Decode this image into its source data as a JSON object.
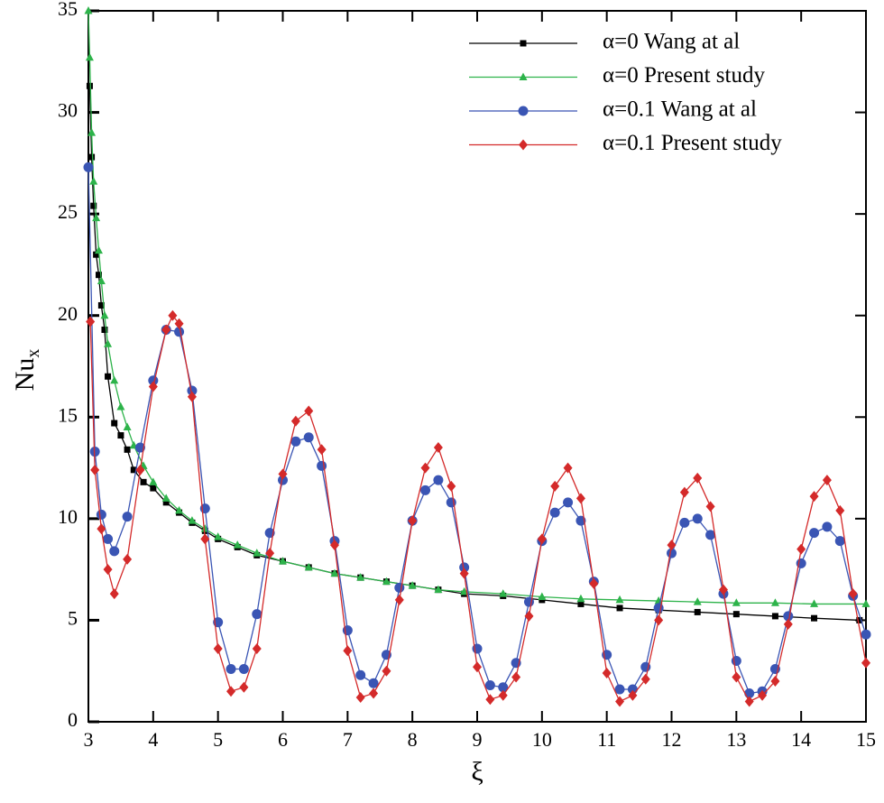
{
  "chart_data": {
    "type": "line",
    "xlabel": "ξ",
    "ylabel": "Nu",
    "ylabel_sub": "x",
    "xlim": [
      3,
      15
    ],
    "xticks": [
      3,
      4,
      5,
      6,
      7,
      8,
      9,
      10,
      11,
      12,
      13,
      14,
      15
    ],
    "ylim": [
      0,
      35
    ],
    "yticks": [
      0,
      5,
      10,
      15,
      20,
      25,
      30,
      35
    ],
    "legend": "upper right",
    "series": [
      {
        "name": "α=0 Wang at al",
        "color": "#000000",
        "marker": "square",
        "x": [
          3.02,
          3.05,
          3.08,
          3.12,
          3.16,
          3.2,
          3.25,
          3.3,
          3.4,
          3.5,
          3.6,
          3.7,
          3.85,
          4.0,
          4.2,
          4.4,
          4.6,
          4.8,
          5.0,
          5.3,
          5.6,
          6.0,
          6.4,
          6.8,
          7.2,
          7.6,
          8.0,
          8.4,
          8.8,
          9.4,
          10.0,
          10.6,
          11.2,
          11.8,
          12.4,
          13.0,
          13.6,
          14.2,
          14.9
        ],
        "values": [
          31.3,
          27.8,
          25.4,
          23.0,
          22.0,
          20.5,
          19.3,
          17.0,
          14.7,
          14.1,
          13.4,
          12.4,
          11.8,
          11.5,
          10.8,
          10.3,
          9.8,
          9.4,
          9.0,
          8.6,
          8.2,
          7.9,
          7.6,
          7.3,
          7.1,
          6.9,
          6.7,
          6.5,
          6.3,
          6.2,
          6.0,
          5.8,
          5.6,
          5.5,
          5.4,
          5.3,
          5.2,
          5.1,
          5.0
        ]
      },
      {
        "name": "α=0 Present study",
        "color": "#2db34a",
        "marker": "triangle",
        "x": [
          3.0,
          3.02,
          3.05,
          3.08,
          3.12,
          3.16,
          3.2,
          3.25,
          3.3,
          3.4,
          3.5,
          3.6,
          3.7,
          3.85,
          4.0,
          4.2,
          4.4,
          4.6,
          4.8,
          5.0,
          5.3,
          5.6,
          6.0,
          6.4,
          6.8,
          7.2,
          7.6,
          8.0,
          8.4,
          8.8,
          9.4,
          10.0,
          10.6,
          11.2,
          11.8,
          12.4,
          13.0,
          13.6,
          14.2,
          15.0
        ],
        "values": [
          35,
          32.7,
          29.0,
          26.6,
          24.8,
          23.2,
          21.7,
          20.0,
          18.6,
          16.8,
          15.5,
          14.5,
          13.6,
          12.6,
          11.8,
          11.0,
          10.4,
          9.9,
          9.5,
          9.1,
          8.7,
          8.3,
          7.9,
          7.6,
          7.3,
          7.1,
          6.9,
          6.7,
          6.5,
          6.4,
          6.3,
          6.15,
          6.05,
          6.0,
          5.95,
          5.9,
          5.85,
          5.85,
          5.8,
          5.8
        ]
      },
      {
        "name": "α=0.1 Wang at al",
        "color": "#3a55b4",
        "marker": "circle",
        "x": [
          3.0,
          3.1,
          3.2,
          3.3,
          3.4,
          3.6,
          3.8,
          4.0,
          4.2,
          4.4,
          4.6,
          4.8,
          5.0,
          5.2,
          5.4,
          5.6,
          5.8,
          6.0,
          6.2,
          6.4,
          6.6,
          6.8,
          7.0,
          7.2,
          7.4,
          7.6,
          7.8,
          8.0,
          8.2,
          8.4,
          8.6,
          8.8,
          9.0,
          9.2,
          9.4,
          9.6,
          9.8,
          10.0,
          10.2,
          10.4,
          10.6,
          10.8,
          11.0,
          11.2,
          11.4,
          11.6,
          11.8,
          12.0,
          12.2,
          12.4,
          12.6,
          12.8,
          13.0,
          13.2,
          13.4,
          13.6,
          13.8,
          14.0,
          14.2,
          14.4,
          14.6,
          14.8,
          15.0
        ],
        "values": [
          27.3,
          13.3,
          10.2,
          9.0,
          8.4,
          10.1,
          13.5,
          16.8,
          19.3,
          19.2,
          16.3,
          10.5,
          4.9,
          2.6,
          2.6,
          5.3,
          9.3,
          11.9,
          13.8,
          14.0,
          12.6,
          8.9,
          4.5,
          2.3,
          1.9,
          3.3,
          6.6,
          9.9,
          11.4,
          11.9,
          10.8,
          7.6,
          3.6,
          1.8,
          1.7,
          2.9,
          5.9,
          8.9,
          10.3,
          10.8,
          9.9,
          6.9,
          3.3,
          1.6,
          1.6,
          2.7,
          5.6,
          8.3,
          9.8,
          10.0,
          9.2,
          6.3,
          3.0,
          1.4,
          1.5,
          2.6,
          5.2,
          7.8,
          9.3,
          9.6,
          8.9,
          6.2,
          4.3
        ]
      },
      {
        "name": "α=0.1 Present study",
        "color": "#d42a2a",
        "marker": "diamond",
        "x": [
          3.03,
          3.1,
          3.2,
          3.3,
          3.4,
          3.6,
          3.8,
          4.0,
          4.2,
          4.3,
          4.4,
          4.6,
          4.8,
          5.0,
          5.2,
          5.4,
          5.6,
          5.8,
          6.0,
          6.2,
          6.4,
          6.6,
          6.8,
          7.0,
          7.2,
          7.4,
          7.6,
          7.8,
          8.0,
          8.2,
          8.4,
          8.6,
          8.8,
          9.0,
          9.2,
          9.4,
          9.6,
          9.8,
          10.0,
          10.2,
          10.4,
          10.6,
          10.8,
          11.0,
          11.2,
          11.4,
          11.6,
          11.8,
          12.0,
          12.2,
          12.4,
          12.6,
          12.8,
          13.0,
          13.2,
          13.4,
          13.6,
          13.8,
          14.0,
          14.2,
          14.4,
          14.6,
          14.8,
          15.0
        ],
        "values": [
          19.7,
          12.4,
          9.5,
          7.5,
          6.3,
          8.0,
          12.4,
          16.5,
          19.3,
          20.0,
          19.6,
          16.0,
          9.0,
          3.6,
          1.5,
          1.7,
          3.6,
          8.3,
          12.2,
          14.8,
          15.3,
          13.4,
          8.7,
          3.5,
          1.2,
          1.4,
          2.5,
          6.0,
          9.9,
          12.5,
          13.5,
          11.6,
          7.3,
          2.7,
          1.1,
          1.3,
          2.2,
          5.2,
          9.0,
          11.6,
          12.5,
          11.0,
          6.8,
          2.4,
          1.0,
          1.3,
          2.1,
          5.0,
          8.7,
          11.3,
          12.0,
          10.6,
          6.5,
          2.2,
          1.0,
          1.3,
          2.0,
          4.8,
          8.5,
          11.1,
          11.9,
          10.4,
          6.3,
          2.9
        ]
      }
    ]
  }
}
